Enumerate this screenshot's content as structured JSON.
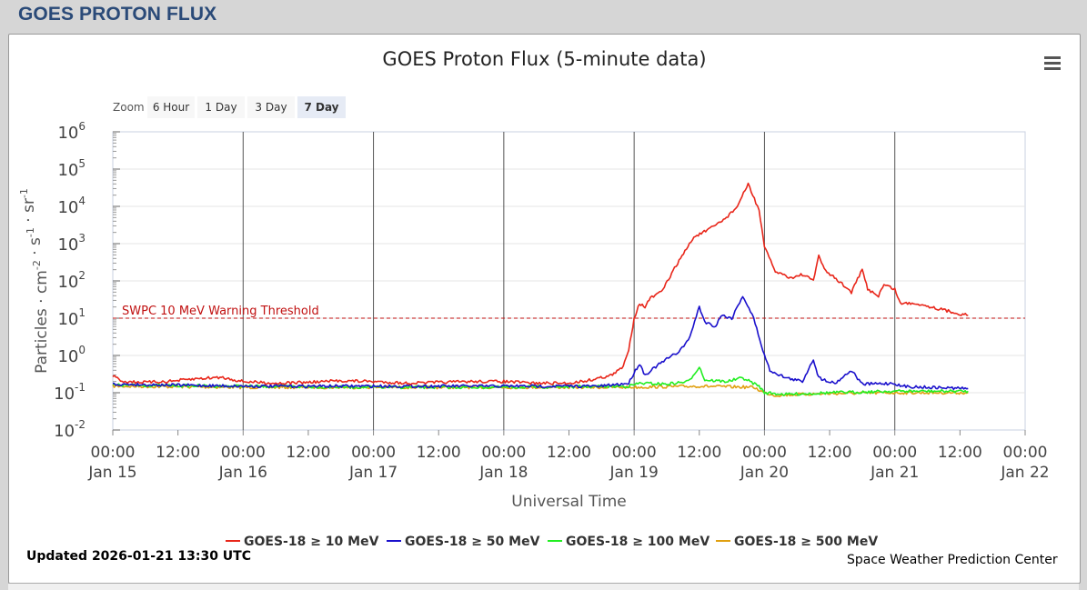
{
  "header": {
    "title": "GOES PROTON FLUX"
  },
  "chart": {
    "title": "GOES Proton Flux (5-minute data)",
    "menu_icon": "hamburger-menu-icon",
    "zoom": {
      "label": "Zoom",
      "buttons": [
        "6 Hour",
        "1 Day",
        "3 Day",
        "7 Day"
      ],
      "selected": "7 Day"
    },
    "threshold_label": "SWPC 10 MeV Warning Threshold",
    "updated": "Updated 2026-01-21 13:30 UTC",
    "credit": "Space Weather Prediction Center"
  },
  "chart_data": {
    "type": "line",
    "title": "GOES Proton Flux (5-minute data)",
    "xlabel": "Universal Time",
    "ylabel_parts": [
      "Particles",
      "cm",
      "-2",
      "s",
      "-1",
      "sr",
      "-1"
    ],
    "y_scale": "log",
    "ylim": [
      0.01,
      1000000
    ],
    "y_ticks": [
      {
        "value": 0.01,
        "base": "10",
        "exp": "-2"
      },
      {
        "value": 0.1,
        "base": "10",
        "exp": "-1"
      },
      {
        "value": 1,
        "base": "10",
        "exp": "0"
      },
      {
        "value": 10,
        "base": "10",
        "exp": "1"
      },
      {
        "value": 100,
        "base": "10",
        "exp": "2"
      },
      {
        "value": 1000,
        "base": "10",
        "exp": "3"
      },
      {
        "value": 10000,
        "base": "10",
        "exp": "4"
      },
      {
        "value": 100000,
        "base": "10",
        "exp": "5"
      },
      {
        "value": 1000000,
        "base": "10",
        "exp": "6"
      }
    ],
    "xlim": [
      "2026-01-15 00:00",
      "2026-01-22 00:00"
    ],
    "x_ticks": [
      {
        "x": "2026-01-15 00:00",
        "time": "00:00",
        "date": "Jan 15"
      },
      {
        "x": "2026-01-15 12:00",
        "time": "12:00",
        "date": ""
      },
      {
        "x": "2026-01-16 00:00",
        "time": "00:00",
        "date": "Jan 16"
      },
      {
        "x": "2026-01-16 12:00",
        "time": "12:00",
        "date": ""
      },
      {
        "x": "2026-01-17 00:00",
        "time": "00:00",
        "date": "Jan 17"
      },
      {
        "x": "2026-01-17 12:00",
        "time": "12:00",
        "date": ""
      },
      {
        "x": "2026-01-18 00:00",
        "time": "00:00",
        "date": "Jan 18"
      },
      {
        "x": "2026-01-18 12:00",
        "time": "12:00",
        "date": ""
      },
      {
        "x": "2026-01-19 00:00",
        "time": "00:00",
        "date": "Jan 19"
      },
      {
        "x": "2026-01-19 12:00",
        "time": "12:00",
        "date": ""
      },
      {
        "x": "2026-01-20 00:00",
        "time": "00:00",
        "date": "Jan 20"
      },
      {
        "x": "2026-01-20 12:00",
        "time": "12:00",
        "date": ""
      },
      {
        "x": "2026-01-21 00:00",
        "time": "00:00",
        "date": "Jan 21"
      },
      {
        "x": "2026-01-21 12:00",
        "time": "12:00",
        "date": ""
      },
      {
        "x": "2026-01-22 00:00",
        "time": "00:00",
        "date": "Jan 22"
      }
    ],
    "day_lines": [
      "2026-01-16 00:00",
      "2026-01-17 00:00",
      "2026-01-18 00:00",
      "2026-01-19 00:00",
      "2026-01-20 00:00",
      "2026-01-21 00:00"
    ],
    "threshold": {
      "value": 10,
      "label": "SWPC 10 MeV Warning Threshold",
      "color": "#c01010"
    },
    "legend_position": "bottom",
    "series": [
      {
        "name": "GOES-18 ≥ 10 MeV",
        "color": "#e8261a",
        "points": [
          [
            "2026-01-15 00:00",
            0.28
          ],
          [
            "2026-01-15 02:00",
            0.2
          ],
          [
            "2026-01-15 06:00",
            0.19
          ],
          [
            "2026-01-15 10:00",
            0.2
          ],
          [
            "2026-01-15 16:00",
            0.24
          ],
          [
            "2026-01-15 20:00",
            0.26
          ],
          [
            "2026-01-16 00:00",
            0.2
          ],
          [
            "2026-01-16 06:00",
            0.18
          ],
          [
            "2026-01-16 12:00",
            0.19
          ],
          [
            "2026-01-16 18:00",
            0.21
          ],
          [
            "2026-01-17 00:00",
            0.2
          ],
          [
            "2026-01-17 06:00",
            0.18
          ],
          [
            "2026-01-17 12:00",
            0.19
          ],
          [
            "2026-01-17 18:00",
            0.2
          ],
          [
            "2026-01-18 00:00",
            0.2
          ],
          [
            "2026-01-18 06:00",
            0.18
          ],
          [
            "2026-01-18 12:00",
            0.18
          ],
          [
            "2026-01-18 16:00",
            0.22
          ],
          [
            "2026-01-18 20:00",
            0.3
          ],
          [
            "2026-01-18 22:00",
            0.5
          ],
          [
            "2026-01-18 23:00",
            1.5
          ],
          [
            "2026-01-19 00:00",
            10
          ],
          [
            "2026-01-19 01:00",
            25
          ],
          [
            "2026-01-19 02:00",
            20
          ],
          [
            "2026-01-19 03:00",
            35
          ],
          [
            "2026-01-19 05:00",
            50
          ],
          [
            "2026-01-19 08:00",
            300
          ],
          [
            "2026-01-19 11:00",
            1500
          ],
          [
            "2026-01-19 14:00",
            2500
          ],
          [
            "2026-01-19 17:00",
            5000
          ],
          [
            "2026-01-19 19:00",
            10000
          ],
          [
            "2026-01-19 21:00",
            40000
          ],
          [
            "2026-01-19 23:00",
            8000
          ],
          [
            "2026-01-20 00:00",
            800
          ],
          [
            "2026-01-20 02:00",
            180
          ],
          [
            "2026-01-20 05:00",
            120
          ],
          [
            "2026-01-20 07:00",
            150
          ],
          [
            "2026-01-20 09:00",
            100
          ],
          [
            "2026-01-20 10:00",
            500
          ],
          [
            "2026-01-20 11:00",
            200
          ],
          [
            "2026-01-20 14:00",
            90
          ],
          [
            "2026-01-20 16:00",
            50
          ],
          [
            "2026-01-20 18:00",
            200
          ],
          [
            "2026-01-20 19:00",
            60
          ],
          [
            "2026-01-20 21:00",
            40
          ],
          [
            "2026-01-20 22:00",
            80
          ],
          [
            "2026-01-21 00:00",
            60
          ],
          [
            "2026-01-21 01:00",
            25
          ],
          [
            "2026-01-21 04:00",
            25
          ],
          [
            "2026-01-21 08:00",
            18
          ],
          [
            "2026-01-21 12:00",
            13
          ],
          [
            "2026-01-21 13:30",
            12
          ]
        ]
      },
      {
        "name": "GOES-18 ≥ 50 MeV",
        "color": "#1a10cc",
        "points": [
          [
            "2026-01-15 00:00",
            0.17
          ],
          [
            "2026-01-16 00:00",
            0.15
          ],
          [
            "2026-01-17 00:00",
            0.15
          ],
          [
            "2026-01-18 00:00",
            0.15
          ],
          [
            "2026-01-18 18:00",
            0.15
          ],
          [
            "2026-01-18 23:00",
            0.18
          ],
          [
            "2026-01-19 00:00",
            0.35
          ],
          [
            "2026-01-19 01:00",
            0.6
          ],
          [
            "2026-01-19 02:00",
            0.3
          ],
          [
            "2026-01-19 04:00",
            0.5
          ],
          [
            "2026-01-19 06:00",
            0.8
          ],
          [
            "2026-01-19 08:00",
            1.2
          ],
          [
            "2026-01-19 10:00",
            2.5
          ],
          [
            "2026-01-19 12:00",
            20
          ],
          [
            "2026-01-19 13:00",
            8
          ],
          [
            "2026-01-19 15:00",
            6
          ],
          [
            "2026-01-19 16:00",
            12
          ],
          [
            "2026-01-19 18:00",
            10
          ],
          [
            "2026-01-19 20:00",
            40
          ],
          [
            "2026-01-19 22:00",
            10
          ],
          [
            "2026-01-20 00:00",
            1
          ],
          [
            "2026-01-20 01:00",
            0.4
          ],
          [
            "2026-01-20 04:00",
            0.25
          ],
          [
            "2026-01-20 07:00",
            0.2
          ],
          [
            "2026-01-20 09:00",
            0.8
          ],
          [
            "2026-01-20 10:00",
            0.25
          ],
          [
            "2026-01-20 13:00",
            0.18
          ],
          [
            "2026-01-20 16:00",
            0.4
          ],
          [
            "2026-01-20 18:00",
            0.17
          ],
          [
            "2026-01-21 00:00",
            0.18
          ],
          [
            "2026-01-21 01:00",
            0.15
          ],
          [
            "2026-01-21 06:00",
            0.14
          ],
          [
            "2026-01-21 13:30",
            0.13
          ]
        ]
      },
      {
        "name": "GOES-18 ≥ 100 MeV",
        "color": "#22ee22",
        "points": [
          [
            "2026-01-15 00:00",
            0.16
          ],
          [
            "2026-01-16 00:00",
            0.15
          ],
          [
            "2026-01-17 00:00",
            0.14
          ],
          [
            "2026-01-18 00:00",
            0.14
          ],
          [
            "2026-01-18 23:00",
            0.15
          ],
          [
            "2026-01-19 01:00",
            0.18
          ],
          [
            "2026-01-19 06:00",
            0.17
          ],
          [
            "2026-01-19 10:00",
            0.2
          ],
          [
            "2026-01-19 12:00",
            0.5
          ],
          [
            "2026-01-19 13:00",
            0.22
          ],
          [
            "2026-01-19 17:00",
            0.2
          ],
          [
            "2026-01-19 20:00",
            0.25
          ],
          [
            "2026-01-19 23:00",
            0.15
          ],
          [
            "2026-01-20 00:00",
            0.1
          ],
          [
            "2026-01-20 04:00",
            0.09
          ],
          [
            "2026-01-20 12:00",
            0.1
          ],
          [
            "2026-01-21 00:00",
            0.11
          ],
          [
            "2026-01-21 13:30",
            0.11
          ]
        ]
      },
      {
        "name": "GOES-18 ≥ 500 MeV",
        "color": "#e0a010",
        "points": [
          [
            "2026-01-15 00:00",
            0.15
          ],
          [
            "2026-01-16 00:00",
            0.14
          ],
          [
            "2026-01-17 00:00",
            0.14
          ],
          [
            "2026-01-18 00:00",
            0.14
          ],
          [
            "2026-01-19 00:00",
            0.14
          ],
          [
            "2026-01-19 12:00",
            0.15
          ],
          [
            "2026-01-19 22:00",
            0.14
          ],
          [
            "2026-01-20 00:00",
            0.1
          ],
          [
            "2026-01-20 02:00",
            0.085
          ],
          [
            "2026-01-20 06:00",
            0.09
          ],
          [
            "2026-01-20 12:00",
            0.095
          ],
          [
            "2026-01-21 00:00",
            0.1
          ],
          [
            "2026-01-21 13:30",
            0.1
          ]
        ]
      }
    ]
  }
}
